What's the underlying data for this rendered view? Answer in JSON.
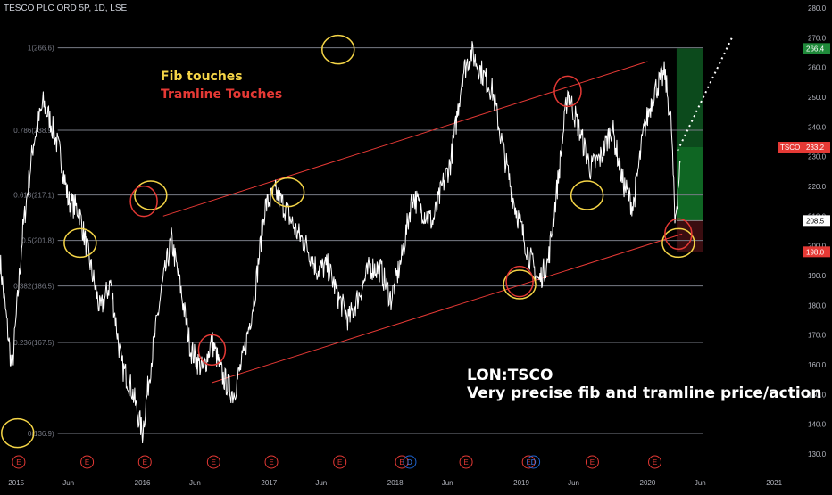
{
  "header": {
    "symbol_line": "TESCO PLC ORD 5P, 1D, LSE"
  },
  "annotations": {
    "fib_touches": "Fib touches",
    "tramline_touches": "Tramline Touches",
    "ticker": "LON:TSCO",
    "description": "Very precise fib and tramline price/action"
  },
  "colors": {
    "price": "#ffffff",
    "fib_line": "#787b86",
    "tramline": "#e53935",
    "fib_circle": "#f5d547",
    "tram_circle": "#e53935",
    "green_zone": "#0c4a1c",
    "green_zone_light": "#0f6623",
    "red_zone": "#3a0d10",
    "axis_text": "#b2b5be",
    "projection": "#ffffff"
  },
  "chart_data": {
    "type": "line",
    "title": "TESCO PLC ORD 5P, 1D, LSE",
    "series": [
      {
        "name": "TSCO",
        "x": [
          "2014-11-15",
          "2014-12-20",
          "2015-01-20",
          "2015-02-20",
          "2015-03-20",
          "2015-04-10",
          "2015-05-10",
          "2015-06-01",
          "2015-07-01",
          "2015-08-01",
          "2015-09-01",
          "2015-10-01",
          "2015-11-01",
          "2015-12-01",
          "2016-01-01",
          "2016-01-25",
          "2016-02-25",
          "2016-03-25",
          "2016-04-20",
          "2016-05-20",
          "2016-06-24",
          "2016-07-20",
          "2016-08-20",
          "2016-09-20",
          "2016-10-20",
          "2016-11-20",
          "2016-12-20",
          "2017-01-20",
          "2017-02-20",
          "2017-03-20",
          "2017-04-20",
          "2017-05-20",
          "2017-06-20",
          "2017-07-20",
          "2017-08-20",
          "2017-09-20",
          "2017-10-20",
          "2017-11-20",
          "2017-12-20",
          "2018-01-20",
          "2018-02-20",
          "2018-03-20",
          "2018-04-20",
          "2018-05-20",
          "2018-06-10",
          "2018-06-25",
          "2018-07-15",
          "2018-08-10",
          "2018-09-10",
          "2018-10-10",
          "2018-11-10",
          "2018-12-10",
          "2018-12-27",
          "2019-01-20",
          "2019-02-20",
          "2019-03-20",
          "2019-04-20",
          "2019-05-15",
          "2019-06-20",
          "2019-07-20",
          "2019-08-20",
          "2019-09-20",
          "2019-10-20",
          "2019-11-20",
          "2019-12-20",
          "2020-01-20",
          "2020-02-20",
          "2020-03-10",
          "2020-03-20",
          "2020-04-05"
        ],
        "values": [
          195,
          158,
          205,
          235,
          248,
          242,
          230,
          215,
          212,
          195,
          178,
          188,
          160,
          152,
          137,
          160,
          185,
          202,
          186,
          165,
          158,
          168,
          156,
          150,
          163,
          183,
          213,
          218,
          212,
          205,
          200,
          192,
          193,
          183,
          175,
          184,
          193,
          192,
          182,
          196,
          217,
          212,
          208,
          221,
          228,
          240,
          258,
          265,
          258,
          252,
          232,
          215,
          208,
          198,
          188,
          195,
          225,
          252,
          238,
          226,
          230,
          240,
          222,
          213,
          238,
          252,
          258,
          240,
          208,
          228
        ]
      }
    ],
    "fib_levels": [
      {
        "label": "1(266.6)",
        "value": 266.6
      },
      {
        "label": "0.786(238.9)",
        "value": 238.9
      },
      {
        "label": "0.618(217.1)",
        "value": 217.1
      },
      {
        "label": "0.5(201.8)",
        "value": 201.8
      },
      {
        "label": "0.382(186.5)",
        "value": 186.5
      },
      {
        "label": "0.236(167.5)",
        "value": 167.5
      },
      {
        "label": "0(136.9)",
        "value": 136.9
      }
    ],
    "tramlines": [
      {
        "x": [
          "2016-03-01",
          "2020-01-01"
        ],
        "y": [
          210,
          262
        ]
      },
      {
        "x": [
          "2016-07-20",
          "2020-04-10"
        ],
        "y": [
          154,
          204
        ]
      }
    ],
    "y_ticks": [
      130,
      140,
      150,
      160,
      170,
      180,
      190,
      200,
      210,
      220,
      230,
      240,
      250,
      260,
      270,
      280
    ],
    "ylim": [
      126,
      283
    ],
    "x_ticks": [
      "2015",
      "Jun",
      "2016",
      "Jun",
      "2017",
      "Jun",
      "2018",
      "Jun",
      "2019",
      "Jun",
      "2020",
      "Jun",
      "2021"
    ],
    "price_labels": {
      "last_symbol": "TSCO",
      "last": "233.2",
      "target": "266.4",
      "entry": "208.5",
      "stop": "198.0"
    },
    "event_markers": [
      {
        "x": "2015-01-08",
        "label": "E"
      },
      {
        "x": "2015-07-25",
        "label": "E"
      },
      {
        "x": "2016-01-08",
        "label": "E"
      },
      {
        "x": "2016-07-25",
        "label": "E"
      },
      {
        "x": "2017-01-08",
        "label": "E"
      },
      {
        "x": "2017-07-25",
        "label": "E"
      },
      {
        "x": "2018-01-20",
        "label": "E"
      },
      {
        "x": "2018-02-12",
        "label": "D"
      },
      {
        "x": "2018-07-25",
        "label": "E"
      },
      {
        "x": "2019-01-22",
        "label": "E"
      },
      {
        "x": "2019-02-05",
        "label": "D"
      },
      {
        "x": "2019-07-25",
        "label": "E"
      },
      {
        "x": "2020-01-22",
        "label": "E"
      }
    ],
    "fib_touch_points": [
      {
        "x": "2015-01-05",
        "y": 137
      },
      {
        "x": "2015-07-05",
        "y": 201
      },
      {
        "x": "2016-01-25",
        "y": 217
      },
      {
        "x": "2017-02-25",
        "y": 218
      },
      {
        "x": "2017-07-20",
        "y": 266
      },
      {
        "x": "2018-12-27",
        "y": 187
      },
      {
        "x": "2019-07-10",
        "y": 217
      },
      {
        "x": "2020-03-30",
        "y": 201
      }
    ],
    "tram_touch_points": [
      {
        "x": "2016-01-05",
        "y": 215
      },
      {
        "x": "2016-07-20",
        "y": 165
      },
      {
        "x": "2018-12-27",
        "y": 188
      },
      {
        "x": "2019-05-15",
        "y": 252
      },
      {
        "x": "2020-03-30",
        "y": 204
      }
    ],
    "trade_zone": {
      "x_start": "2020-03-25",
      "x_end": "2020-06-10",
      "target": 266.4,
      "last": 233.2,
      "entry": 208.5,
      "stop": 198.0
    },
    "projection": {
      "x": [
        "2020-03-28",
        "2020-09-01"
      ],
      "y": [
        232,
        270
      ]
    },
    "legend": "none",
    "grid": false
  }
}
